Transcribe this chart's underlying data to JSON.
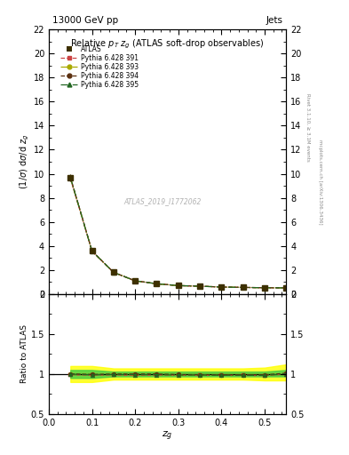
{
  "title_top": "13000 GeV pp",
  "title_right": "Jets",
  "plot_title": "Relative $p_T$ $z_g$ (ATLAS soft-drop observables)",
  "watermark": "ATLAS_2019_I1772062",
  "rivet_text": "Rivet 3.1.10, ≥ 3.1M events",
  "mcplots_text": "mcplots.cern.ch [arXiv:1306.3436]",
  "ylabel_main": "$(1/\\sigma)$ d$\\sigma$/d $z_g$",
  "ylabel_ratio": "Ratio to ATLAS",
  "xlabel": "$z_g$",
  "xlim": [
    0.0,
    0.55
  ],
  "ylim_main": [
    0,
    22
  ],
  "ylim_ratio": [
    0.5,
    2.0
  ],
  "xdata": [
    0.05,
    0.1,
    0.15,
    0.2,
    0.25,
    0.3,
    0.35,
    0.4,
    0.45,
    0.5,
    0.55
  ],
  "atlas_y": [
    9.7,
    3.6,
    1.8,
    1.1,
    0.85,
    0.7,
    0.65,
    0.58,
    0.55,
    0.52,
    0.5
  ],
  "atlas_yerr": [
    0.3,
    0.15,
    0.07,
    0.05,
    0.04,
    0.03,
    0.03,
    0.03,
    0.03,
    0.03,
    0.03
  ],
  "pythia_391_y": [
    9.6,
    3.55,
    1.78,
    1.08,
    0.84,
    0.69,
    0.64,
    0.57,
    0.54,
    0.51,
    0.5
  ],
  "pythia_393_y": [
    9.65,
    3.57,
    1.79,
    1.09,
    0.845,
    0.692,
    0.642,
    0.572,
    0.542,
    0.512,
    0.502
  ],
  "pythia_394_y": [
    9.72,
    3.58,
    1.8,
    1.1,
    0.85,
    0.695,
    0.645,
    0.575,
    0.545,
    0.515,
    0.505
  ],
  "pythia_395_y": [
    9.68,
    3.56,
    1.79,
    1.09,
    0.843,
    0.691,
    0.641,
    0.571,
    0.541,
    0.511,
    0.501
  ],
  "ratio_391": [
    0.99,
    0.986,
    0.989,
    0.982,
    0.988,
    0.986,
    0.985,
    0.983,
    0.982,
    0.981,
    1.0
  ],
  "ratio_393": [
    0.995,
    0.992,
    0.994,
    0.991,
    0.994,
    0.989,
    0.988,
    0.986,
    0.985,
    0.985,
    1.004
  ],
  "ratio_394": [
    1.002,
    0.994,
    1.0,
    1.0,
    1.0,
    0.993,
    0.992,
    0.991,
    0.991,
    0.99,
    1.01
  ],
  "ratio_395": [
    0.998,
    0.989,
    0.994,
    0.991,
    0.992,
    0.987,
    0.987,
    0.984,
    0.984,
    0.983,
    1.002
  ],
  "band_green_low": [
    0.95,
    0.95,
    0.97,
    0.97,
    0.97,
    0.97,
    0.97,
    0.97,
    0.97,
    0.97,
    0.97
  ],
  "band_green_high": [
    1.05,
    1.05,
    1.03,
    1.03,
    1.03,
    1.03,
    1.03,
    1.03,
    1.03,
    1.03,
    1.05
  ],
  "band_yellow_low": [
    0.9,
    0.9,
    0.93,
    0.93,
    0.93,
    0.93,
    0.93,
    0.93,
    0.93,
    0.92,
    0.92
  ],
  "band_yellow_high": [
    1.1,
    1.1,
    1.07,
    1.07,
    1.07,
    1.07,
    1.07,
    1.07,
    1.07,
    1.08,
    1.12
  ],
  "color_atlas": "#3d3000",
  "color_391": "#cc4444",
  "color_393": "#aaaa00",
  "color_394": "#5c3010",
  "color_395": "#226622",
  "marker_391": "s",
  "marker_393": "o",
  "marker_394": "o",
  "marker_395": "^",
  "ls_391": "--",
  "ls_393": "-.",
  "ls_394": "--",
  "ls_395": "-.",
  "legend_labels": [
    "ATLAS",
    "Pythia 6.428 391",
    "Pythia 6.428 393",
    "Pythia 6.428 394",
    "Pythia 6.428 395"
  ],
  "yticks_main": [
    0,
    2,
    4,
    6,
    8,
    10,
    12,
    14,
    16,
    18,
    20,
    22
  ],
  "yticks_ratio": [
    0.5,
    1.0,
    1.5,
    2.0
  ],
  "xticks": [
    0.0,
    0.1,
    0.2,
    0.3,
    0.4,
    0.5
  ]
}
